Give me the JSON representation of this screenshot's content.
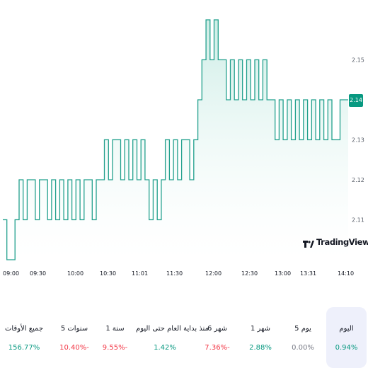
{
  "chart_data": {
    "type": "area",
    "y_ticks": [
      "2.15",
      "2.14",
      "2.13",
      "2.12",
      "2.11"
    ],
    "x_ticks": [
      "09:00",
      "09:30",
      "10:00",
      "10:30",
      "11:01",
      "11:30",
      "12:00",
      "12:30",
      "13:00",
      "13:31",
      "14:10"
    ],
    "last_price": "2.14",
    "series": [
      {
        "values": [
          2.11,
          2.1,
          2.1,
          2.11,
          2.12,
          2.11,
          2.12,
          2.12,
          2.11,
          2.12,
          2.12,
          2.11,
          2.12,
          2.11,
          2.12,
          2.11,
          2.12,
          2.11,
          2.12,
          2.11,
          2.12,
          2.12,
          2.11,
          2.12,
          2.12,
          2.13,
          2.12,
          2.13,
          2.13,
          2.12,
          2.13,
          2.12,
          2.13,
          2.12,
          2.13,
          2.12,
          2.11,
          2.12,
          2.11,
          2.12,
          2.13,
          2.12,
          2.13,
          2.12,
          2.13,
          2.13,
          2.12,
          2.13,
          2.14,
          2.15,
          2.16,
          2.15,
          2.16,
          2.15,
          2.15,
          2.14,
          2.15,
          2.14,
          2.15,
          2.14,
          2.15,
          2.14,
          2.15,
          2.14,
          2.15,
          2.14,
          2.14,
          2.13,
          2.14,
          2.13,
          2.14,
          2.13,
          2.14,
          2.13,
          2.14,
          2.13,
          2.14,
          2.13,
          2.14,
          2.13,
          2.14,
          2.13,
          2.13,
          2.14,
          2.14
        ]
      }
    ],
    "colors": {
      "line": "#22a08d",
      "fill_top": "#c7ebe3",
      "price_tag": "#089981"
    }
  },
  "logo": {
    "text": "TradingView",
    "icon": "tradingview-logo-icon"
  },
  "periods": [
    {
      "label": "اليوم",
      "value": "0.94%",
      "tone": "pos",
      "active": true
    },
    {
      "label": "5 يوم",
      "value": "0.00%",
      "tone": "neu",
      "active": false
    },
    {
      "label": "1 شهر",
      "value": "2.88%",
      "tone": "pos",
      "active": false
    },
    {
      "label": "6 شهر",
      "value": "7.36%-",
      "tone": "neg",
      "active": false
    },
    {
      "label": "منذ بداية العام حتى اليوم",
      "value": "1.42%",
      "tone": "pos",
      "active": false
    },
    {
      "label": "1 سنة",
      "value": "9.55%-",
      "tone": "neg",
      "active": false
    },
    {
      "label": "5 سنوات",
      "value": "10.40%-",
      "tone": "neg",
      "active": false
    },
    {
      "label": "جميع الأوقات",
      "value": "156.77%",
      "tone": "pos",
      "active": false
    }
  ]
}
